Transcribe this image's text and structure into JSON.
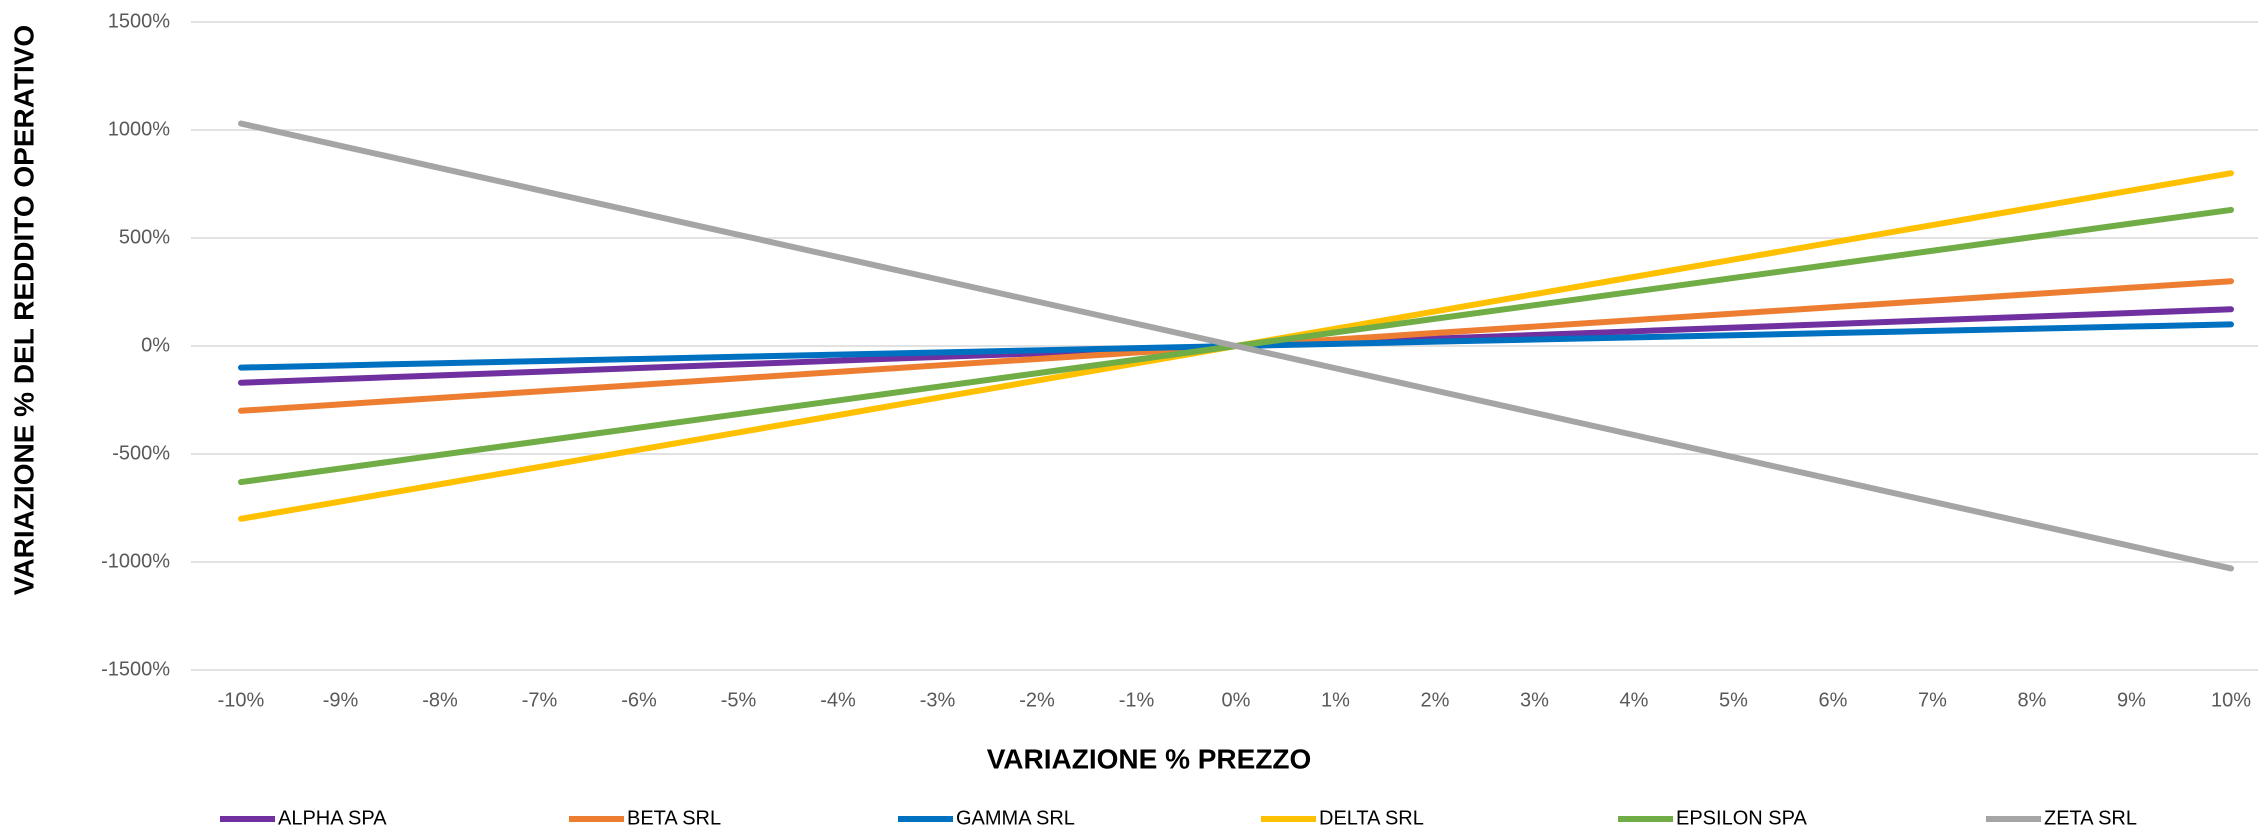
{
  "chart_data": {
    "type": "line",
    "x_label": "VARIAZIONE % PREZZO",
    "y_label": "VARIAZIONE % DEL REDDITO OPERATIVO",
    "categories": [
      "-10%",
      "-9%",
      "-8%",
      "-7%",
      "-6%",
      "-5%",
      "-4%",
      "-3%",
      "-2%",
      "-1%",
      "0%",
      "1%",
      "2%",
      "3%",
      "4%",
      "5%",
      "6%",
      "7%",
      "8%",
      "9%",
      "10%"
    ],
    "series": [
      {
        "name": "ALPHA SPA",
        "color": "#7030a0",
        "values": [
          -170,
          -153,
          -136,
          -119,
          -102,
          -85,
          -68,
          -51,
          -34,
          -17,
          0,
          17,
          34,
          51,
          68,
          85,
          102,
          119,
          136,
          153,
          170
        ]
      },
      {
        "name": "BETA SRL",
        "color": "#ed7d31",
        "values": [
          -300,
          -270,
          -240,
          -210,
          -180,
          -150,
          -120,
          -90,
          -60,
          -30,
          0,
          30,
          60,
          90,
          120,
          150,
          180,
          210,
          240,
          270,
          300
        ]
      },
      {
        "name": "GAMMA SRL",
        "color": "#0070c0",
        "values": [
          -100,
          -90,
          -80,
          -70,
          -60,
          -50,
          -40,
          -30,
          -20,
          -10,
          0,
          10,
          20,
          30,
          40,
          50,
          60,
          70,
          80,
          90,
          100
        ]
      },
      {
        "name": "DELTA SRL",
        "color": "#ffc000",
        "values": [
          -800,
          -720,
          -640,
          -560,
          -480,
          -400,
          -320,
          -240,
          -160,
          -80,
          0,
          80,
          160,
          240,
          320,
          400,
          480,
          560,
          640,
          720,
          800
        ]
      },
      {
        "name": "EPSILON SPA",
        "color": "#70ad47",
        "values": [
          -630,
          -567,
          -504,
          -441,
          -378,
          -315,
          -252,
          -189,
          -126,
          -63,
          0,
          63,
          126,
          189,
          252,
          315,
          378,
          441,
          504,
          567,
          630
        ]
      },
      {
        "name": "ZETA SRL",
        "color": "#a5a5a5",
        "values": [
          1030,
          927,
          824,
          721,
          618,
          515,
          412,
          309,
          206,
          103,
          0,
          -103,
          -206,
          -309,
          -412,
          -515,
          -618,
          -721,
          -824,
          -927,
          -1030
        ]
      }
    ],
    "ylim": [
      -1500,
      1500
    ],
    "yticks": [
      {
        "value": -1500,
        "label": "-1500%"
      },
      {
        "value": -1000,
        "label": "-1000%"
      },
      {
        "value": -500,
        "label": "-500%"
      },
      {
        "value": 0,
        "label": "0%"
      },
      {
        "value": 500,
        "label": "500%"
      },
      {
        "value": 1000,
        "label": "1000%"
      },
      {
        "value": 1500,
        "label": "1500%"
      }
    ],
    "grid": true,
    "legend": "bottom"
  }
}
